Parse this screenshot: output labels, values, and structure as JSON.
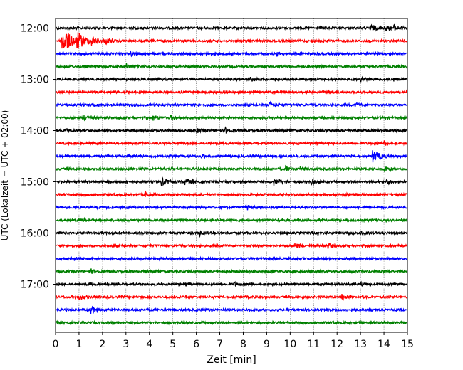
{
  "chart_data": {
    "type": "line",
    "xlabel": "Zeit  [min]",
    "ylabel": "UTC (Lokalzeit = UTC + 02:00)",
    "xlim": [
      0,
      15
    ],
    "x_ticks": [
      "0",
      "1",
      "2",
      "3",
      "4",
      "5",
      "6",
      "7",
      "8",
      "9",
      "10",
      "11",
      "12",
      "13",
      "14",
      "15"
    ],
    "y_tick_labels": [
      "12:00",
      "13:00",
      "14:00",
      "15:00",
      "16:00",
      "17:00"
    ],
    "grid_x": "dotted",
    "colors": [
      "#000000",
      "#ff0000",
      "#0000ff",
      "#008000"
    ],
    "rows": [
      {
        "start": "12:00",
        "color": "#000000",
        "events": [
          {
            "t": 13.4,
            "a": 5
          },
          {
            "t": 14.0,
            "a": 5
          },
          {
            "t": 14.4,
            "a": 4
          }
        ]
      },
      {
        "start": "12:15",
        "color": "#ff0000",
        "events": [
          {
            "t": 0.25,
            "a": 18
          },
          {
            "t": 0.9,
            "a": 10
          },
          {
            "t": 1.5,
            "a": 6
          },
          {
            "t": 2.1,
            "a": 4
          }
        ]
      },
      {
        "start": "12:30",
        "color": "#0000ff",
        "events": [
          {
            "t": 3.2,
            "a": 3
          },
          {
            "t": 9.4,
            "a": 3
          }
        ]
      },
      {
        "start": "12:45",
        "color": "#008000",
        "events": [
          {
            "t": 3.0,
            "a": 4
          }
        ]
      },
      {
        "start": "13:00",
        "color": "#000000",
        "events": [
          {
            "t": 8.3,
            "a": 4
          },
          {
            "t": 13.0,
            "a": 3
          }
        ]
      },
      {
        "start": "13:15",
        "color": "#ff0000",
        "events": [
          {
            "t": 11.6,
            "a": 3
          }
        ]
      },
      {
        "start": "13:30",
        "color": "#0000ff",
        "events": [
          {
            "t": 9.1,
            "a": 4
          },
          {
            "t": 12.8,
            "a": 3
          }
        ]
      },
      {
        "start": "13:45",
        "color": "#008000",
        "events": [
          {
            "t": 1.2,
            "a": 5
          },
          {
            "t": 4.1,
            "a": 4
          },
          {
            "t": 4.9,
            "a": 3
          }
        ]
      },
      {
        "start": "14:00",
        "color": "#000000",
        "events": [
          {
            "t": 0.4,
            "a": 3
          },
          {
            "t": 6.0,
            "a": 3
          },
          {
            "t": 7.2,
            "a": 4
          }
        ]
      },
      {
        "start": "14:15",
        "color": "#ff0000",
        "events": [
          {
            "t": 14.0,
            "a": 3
          }
        ]
      },
      {
        "start": "14:30",
        "color": "#0000ff",
        "events": [
          {
            "t": 6.2,
            "a": 3
          },
          {
            "t": 13.5,
            "a": 9
          }
        ]
      },
      {
        "start": "14:45",
        "color": "#008000",
        "events": [
          {
            "t": 9.8,
            "a": 4
          },
          {
            "t": 10.4,
            "a": 3
          },
          {
            "t": 14.0,
            "a": 5
          }
        ]
      },
      {
        "start": "15:00",
        "color": "#000000",
        "events": [
          {
            "t": 3.0,
            "a": 3
          },
          {
            "t": 4.5,
            "a": 6
          },
          {
            "t": 5.5,
            "a": 6
          },
          {
            "t": 9.3,
            "a": 5
          },
          {
            "t": 10.9,
            "a": 3
          },
          {
            "t": 14.1,
            "a": 3
          }
        ]
      },
      {
        "start": "15:15",
        "color": "#ff0000",
        "events": [
          {
            "t": 3.8,
            "a": 4
          },
          {
            "t": 12.3,
            "a": 3
          }
        ]
      },
      {
        "start": "15:30",
        "color": "#0000ff",
        "events": [
          {
            "t": 8.1,
            "a": 4
          }
        ]
      },
      {
        "start": "15:45",
        "color": "#008000",
        "events": [
          {
            "t": 1.1,
            "a": 3
          }
        ]
      },
      {
        "start": "16:00",
        "color": "#000000",
        "events": [
          {
            "t": 6.1,
            "a": 4
          },
          {
            "t": 13.0,
            "a": 3
          }
        ]
      },
      {
        "start": "16:15",
        "color": "#ff0000",
        "events": [
          {
            "t": 10.2,
            "a": 4
          },
          {
            "t": 11.6,
            "a": 4
          }
        ]
      },
      {
        "start": "16:30",
        "color": "#0000ff",
        "events": [
          {
            "t": 0.8,
            "a": 2
          }
        ]
      },
      {
        "start": "16:45",
        "color": "#008000",
        "events": [
          {
            "t": 1.5,
            "a": 3
          }
        ]
      },
      {
        "start": "17:00",
        "color": "#000000",
        "events": [
          {
            "t": 7.6,
            "a": 3
          },
          {
            "t": 13.0,
            "a": 3
          }
        ]
      },
      {
        "start": "17:15",
        "color": "#ff0000",
        "events": [
          {
            "t": 1.0,
            "a": 4
          },
          {
            "t": 12.2,
            "a": 4
          }
        ]
      },
      {
        "start": "17:30",
        "color": "#0000ff",
        "events": [
          {
            "t": 1.5,
            "a": 6
          }
        ]
      },
      {
        "start": "17:45",
        "color": "#008000",
        "events": []
      }
    ]
  }
}
